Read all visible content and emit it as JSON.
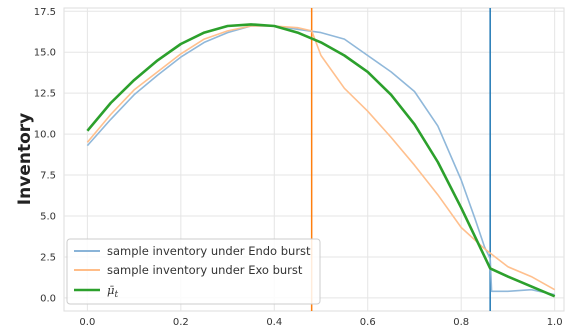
{
  "chart_data": {
    "type": "line",
    "xlabel": "",
    "ylabel": "Inventory",
    "xlim": [
      -0.05,
      1.02
    ],
    "ylim": [
      -0.8,
      17.7
    ],
    "x_ticks": [
      "0.0",
      "0.2",
      "0.4",
      "0.6",
      "0.8",
      "1.0"
    ],
    "y_ticks": [
      "0.0",
      "2.5",
      "5.0",
      "7.5",
      "10.0",
      "12.5",
      "15.0",
      "17.5"
    ],
    "grid": true,
    "legend_position": "bottom-left",
    "series": [
      {
        "name": "sample inventory under Endo burst",
        "color": "#8ab4d8",
        "x": [
          0.0,
          0.05,
          0.1,
          0.15,
          0.2,
          0.25,
          0.3,
          0.35,
          0.4,
          0.45,
          0.5,
          0.55,
          0.6,
          0.65,
          0.7,
          0.75,
          0.8,
          0.83,
          0.85,
          0.862,
          0.865,
          0.9,
          0.95,
          1.0
        ],
        "y": [
          9.3,
          10.9,
          12.4,
          13.6,
          14.7,
          15.6,
          16.2,
          16.6,
          16.6,
          16.4,
          16.2,
          15.8,
          14.8,
          13.8,
          12.6,
          10.5,
          7.2,
          4.8,
          3.1,
          2.4,
          0.4,
          0.4,
          0.5,
          0.2
        ]
      },
      {
        "name": "sample inventory under Exo burst",
        "color": "#ffbd88",
        "x": [
          0.0,
          0.05,
          0.1,
          0.15,
          0.2,
          0.25,
          0.3,
          0.35,
          0.4,
          0.45,
          0.48,
          0.5,
          0.55,
          0.6,
          0.65,
          0.7,
          0.75,
          0.8,
          0.85,
          0.9,
          0.95,
          1.0
        ],
        "y": [
          9.5,
          11.2,
          12.7,
          13.8,
          14.9,
          15.8,
          16.3,
          16.6,
          16.6,
          16.5,
          16.3,
          14.8,
          12.8,
          11.4,
          9.8,
          8.1,
          6.3,
          4.3,
          3.0,
          1.9,
          1.3,
          0.5
        ]
      },
      {
        "name": "$\\bar{\\mu}_t$",
        "color": "#2ca02c",
        "x": [
          0.0,
          0.05,
          0.1,
          0.15,
          0.2,
          0.25,
          0.3,
          0.35,
          0.4,
          0.45,
          0.5,
          0.55,
          0.6,
          0.65,
          0.7,
          0.75,
          0.8,
          0.862,
          0.9,
          0.95,
          1.0
        ],
        "y": [
          10.2,
          11.9,
          13.3,
          14.5,
          15.5,
          16.2,
          16.6,
          16.7,
          16.6,
          16.2,
          15.6,
          14.8,
          13.8,
          12.4,
          10.6,
          8.3,
          5.5,
          1.8,
          1.3,
          0.7,
          0.1
        ]
      }
    ],
    "vertical_lines": [
      {
        "x": 0.48,
        "color": "#ff7f0e"
      },
      {
        "x": 0.862,
        "color": "#1f77b4"
      }
    ]
  },
  "legend": [
    {
      "label": "sample inventory under Endo burst",
      "color": "#8ab4d8"
    },
    {
      "label": "sample inventory under Exo burst",
      "color": "#ffbd88"
    },
    {
      "label_main": "μ̄",
      "label_sub": "t",
      "color": "#2ca02c"
    }
  ]
}
